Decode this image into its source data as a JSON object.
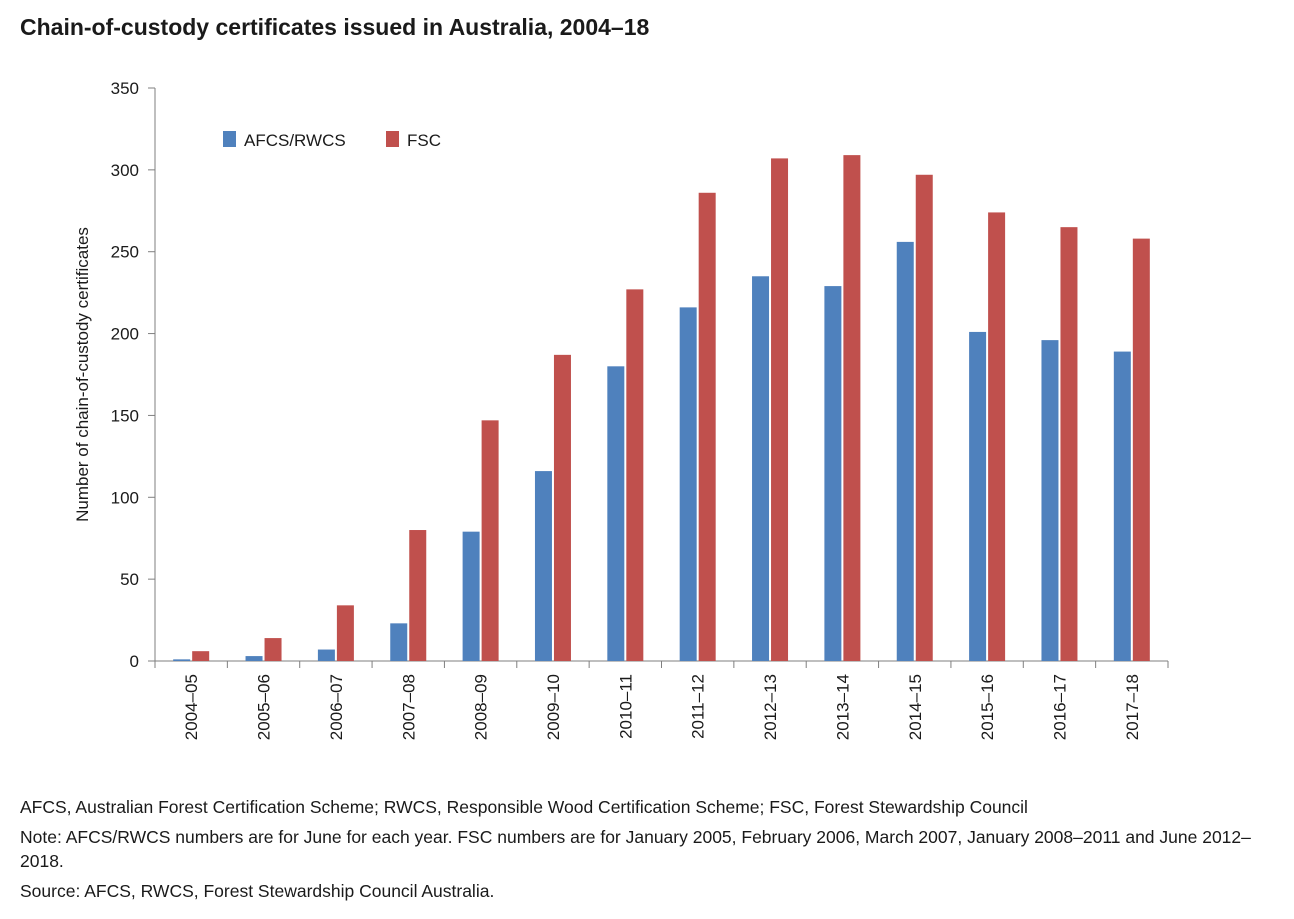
{
  "chart_data": {
    "type": "bar",
    "title": "Chain-of-custody certificates issued in Australia, 2004–18",
    "xlabel": "",
    "ylabel": "Number of chain-of-custody certificates",
    "ylim": [
      0,
      350
    ],
    "yticks": [
      0,
      50,
      100,
      150,
      200,
      250,
      300,
      350
    ],
    "grid": false,
    "legend_position": "top-left",
    "categories": [
      "2004–05",
      "2005–06",
      "2006–07",
      "2007–08",
      "2008–09",
      "2009–10",
      "2010–11",
      "2011–12",
      "2012–13",
      "2013–14",
      "2014–15",
      "2015–16",
      "2016–17",
      "2017–18"
    ],
    "series": [
      {
        "name": "AFCS/RWCS",
        "color": "#4f81bd",
        "values": [
          1,
          3,
          7,
          23,
          79,
          116,
          180,
          216,
          235,
          229,
          256,
          201,
          196,
          189
        ]
      },
      {
        "name": "FSC",
        "color": "#c0504d",
        "values": [
          6,
          14,
          34,
          80,
          147,
          187,
          227,
          286,
          307,
          309,
          297,
          274,
          265,
          258
        ]
      }
    ]
  },
  "footnotes": {
    "abbreviations": "AFCS, Australian Forest Certification Scheme; RWCS, Responsible Wood Certification Scheme; FSC, Forest Stewardship Council",
    "note": "Note: AFCS/RWCS numbers are for June for each year. FSC numbers are for January 2005, February 2006, March 2007, January 2008–2011 and June 2012–2018.",
    "source": "Source: AFCS, RWCS, Forest Stewardship Council Australia."
  },
  "colors": {
    "axis": "#7f7f7f",
    "text": "#1a1a1a"
  }
}
